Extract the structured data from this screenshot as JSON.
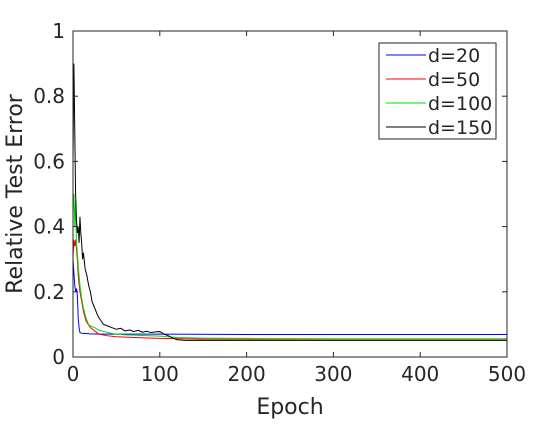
{
  "chart_data": {
    "type": "line",
    "title": "",
    "xlabel": "Epoch",
    "ylabel": "Relative Test Error",
    "xlim": [
      0,
      500
    ],
    "ylim": [
      0,
      1
    ],
    "xticks": [
      0,
      100,
      200,
      300,
      400,
      500
    ],
    "yticks": [
      0,
      0.2,
      0.4,
      0.6,
      0.8,
      1
    ],
    "xtick_labels": [
      "0",
      "100",
      "200",
      "300",
      "400",
      "500"
    ],
    "ytick_labels": [
      "0",
      "0.2",
      "0.4",
      "0.6",
      "0.8",
      "1"
    ],
    "grid": false,
    "legend_position": "top-right",
    "series": [
      {
        "name": "d=20",
        "color": "#0000ff",
        "x": [
          0,
          1,
          2,
          3,
          4,
          5,
          6,
          7,
          8,
          10,
          15,
          20,
          30,
          50,
          100,
          200,
          300,
          400,
          500
        ],
        "y": [
          0.3,
          0.26,
          0.22,
          0.2,
          0.21,
          0.19,
          0.12,
          0.09,
          0.075,
          0.073,
          0.072,
          0.071,
          0.07,
          0.07,
          0.07,
          0.069,
          0.069,
          0.069,
          0.069
        ]
      },
      {
        "name": "d=50",
        "color": "#ff0000",
        "x": [
          0,
          1,
          2,
          3,
          4,
          5,
          6,
          8,
          10,
          12,
          15,
          20,
          25,
          30,
          40,
          50,
          70,
          100,
          150,
          200,
          300,
          400,
          500
        ],
        "y": [
          0.3,
          0.36,
          0.34,
          0.36,
          0.33,
          0.3,
          0.25,
          0.2,
          0.17,
          0.14,
          0.11,
          0.09,
          0.08,
          0.07,
          0.065,
          0.062,
          0.06,
          0.057,
          0.055,
          0.055,
          0.055,
          0.055,
          0.055
        ]
      },
      {
        "name": "d=100",
        "color": "#00dd00",
        "x": [
          0,
          1,
          2,
          3,
          4,
          5,
          6,
          8,
          10,
          12,
          15,
          18,
          20,
          25,
          30,
          40,
          50,
          60,
          80,
          100,
          120,
          150,
          200,
          300,
          400,
          500
        ],
        "y": [
          0.45,
          0.5,
          0.4,
          0.48,
          0.35,
          0.32,
          0.28,
          0.22,
          0.18,
          0.15,
          0.12,
          0.1,
          0.095,
          0.09,
          0.082,
          0.075,
          0.07,
          0.068,
          0.066,
          0.064,
          0.06,
          0.058,
          0.057,
          0.056,
          0.056,
          0.056
        ]
      },
      {
        "name": "d=150",
        "color": "#000000",
        "x": [
          0,
          1,
          2,
          3,
          4,
          5,
          6,
          7,
          8,
          9,
          10,
          11,
          12,
          14,
          16,
          18,
          20,
          22,
          25,
          28,
          30,
          35,
          40,
          45,
          50,
          55,
          60,
          65,
          70,
          75,
          80,
          85,
          90,
          95,
          100,
          105,
          110,
          115,
          120,
          130,
          150,
          200,
          300,
          400,
          500
        ],
        "y": [
          0.6,
          0.9,
          0.7,
          0.5,
          0.42,
          0.38,
          0.4,
          0.35,
          0.43,
          0.38,
          0.35,
          0.3,
          0.32,
          0.27,
          0.25,
          0.22,
          0.2,
          0.17,
          0.15,
          0.13,
          0.12,
          0.1,
          0.095,
          0.09,
          0.085,
          0.088,
          0.08,
          0.083,
          0.078,
          0.082,
          0.076,
          0.079,
          0.075,
          0.077,
          0.078,
          0.07,
          0.065,
          0.058,
          0.053,
          0.051,
          0.051,
          0.051,
          0.051,
          0.051,
          0.051
        ]
      }
    ]
  }
}
